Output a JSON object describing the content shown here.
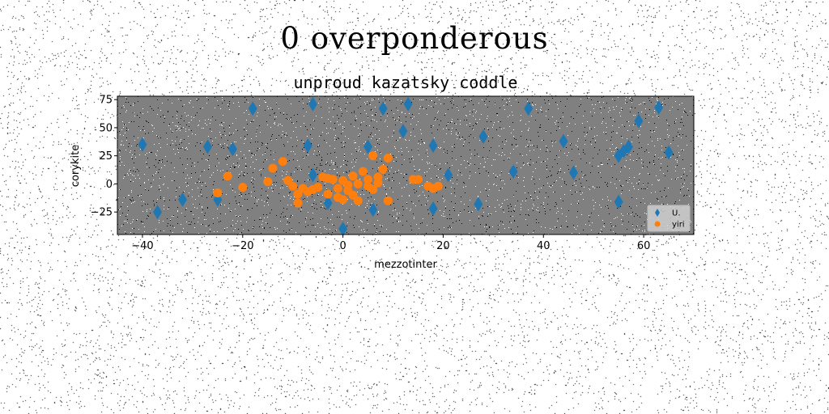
{
  "suptitle": "0 overponderous",
  "chart_data": {
    "type": "scatter",
    "title": "unproud kazatsky coddle",
    "xlabel": "mezzotinter",
    "ylabel": "corykite",
    "xlim": [
      -45,
      70
    ],
    "ylim": [
      -45,
      78
    ],
    "xticks": [
      -40,
      -20,
      0,
      20,
      40,
      60
    ],
    "yticks": [
      -25,
      0,
      25,
      50,
      75
    ],
    "grid": false,
    "legend_position": "lower-right",
    "plot_background": "#808080",
    "series": [
      {
        "name": "U.",
        "marker": "diamond",
        "color": "#1f77b4",
        "x": [
          -40,
          -37,
          -32,
          -27,
          -25,
          -22,
          -18,
          -7,
          -6,
          -6,
          -3,
          0,
          5,
          6,
          8,
          12,
          13,
          18,
          18,
          21,
          27,
          28,
          34,
          37,
          44,
          46,
          55,
          55,
          56,
          57,
          59,
          63,
          65
        ],
        "y": [
          35,
          -25,
          -14,
          33,
          -14,
          31,
          67,
          34,
          8,
          71,
          -17,
          -40,
          33,
          -23,
          67,
          47,
          71,
          -22,
          34,
          8,
          -18,
          42,
          11,
          67,
          38,
          10,
          25,
          -16,
          29,
          33,
          56,
          68,
          28
        ]
      },
      {
        "name": "yiri",
        "marker": "circle",
        "color": "#ff7f0e",
        "x": [
          -25,
          -23,
          -20,
          -15,
          -14,
          -12,
          -11,
          -10,
          -9,
          -9,
          -8,
          -7,
          -6,
          -5,
          -4,
          -3,
          -3,
          -2,
          -1,
          -1,
          0,
          0,
          1,
          1,
          2,
          2,
          3,
          3,
          4,
          5,
          5,
          6,
          6,
          7,
          7,
          8,
          9,
          9,
          14,
          15,
          17,
          18,
          19
        ],
        "y": [
          -8,
          7,
          -3,
          2,
          14,
          20,
          3,
          -2,
          -9,
          -17,
          -4,
          -7,
          -5,
          -3,
          6,
          -9,
          5,
          4,
          -4,
          -12,
          3,
          -14,
          -6,
          -1,
          -10,
          7,
          -15,
          0,
          11,
          -2,
          4,
          25,
          -5,
          1,
          6,
          13,
          -15,
          23,
          4,
          4,
          -2,
          -4,
          -2
        ]
      }
    ]
  }
}
